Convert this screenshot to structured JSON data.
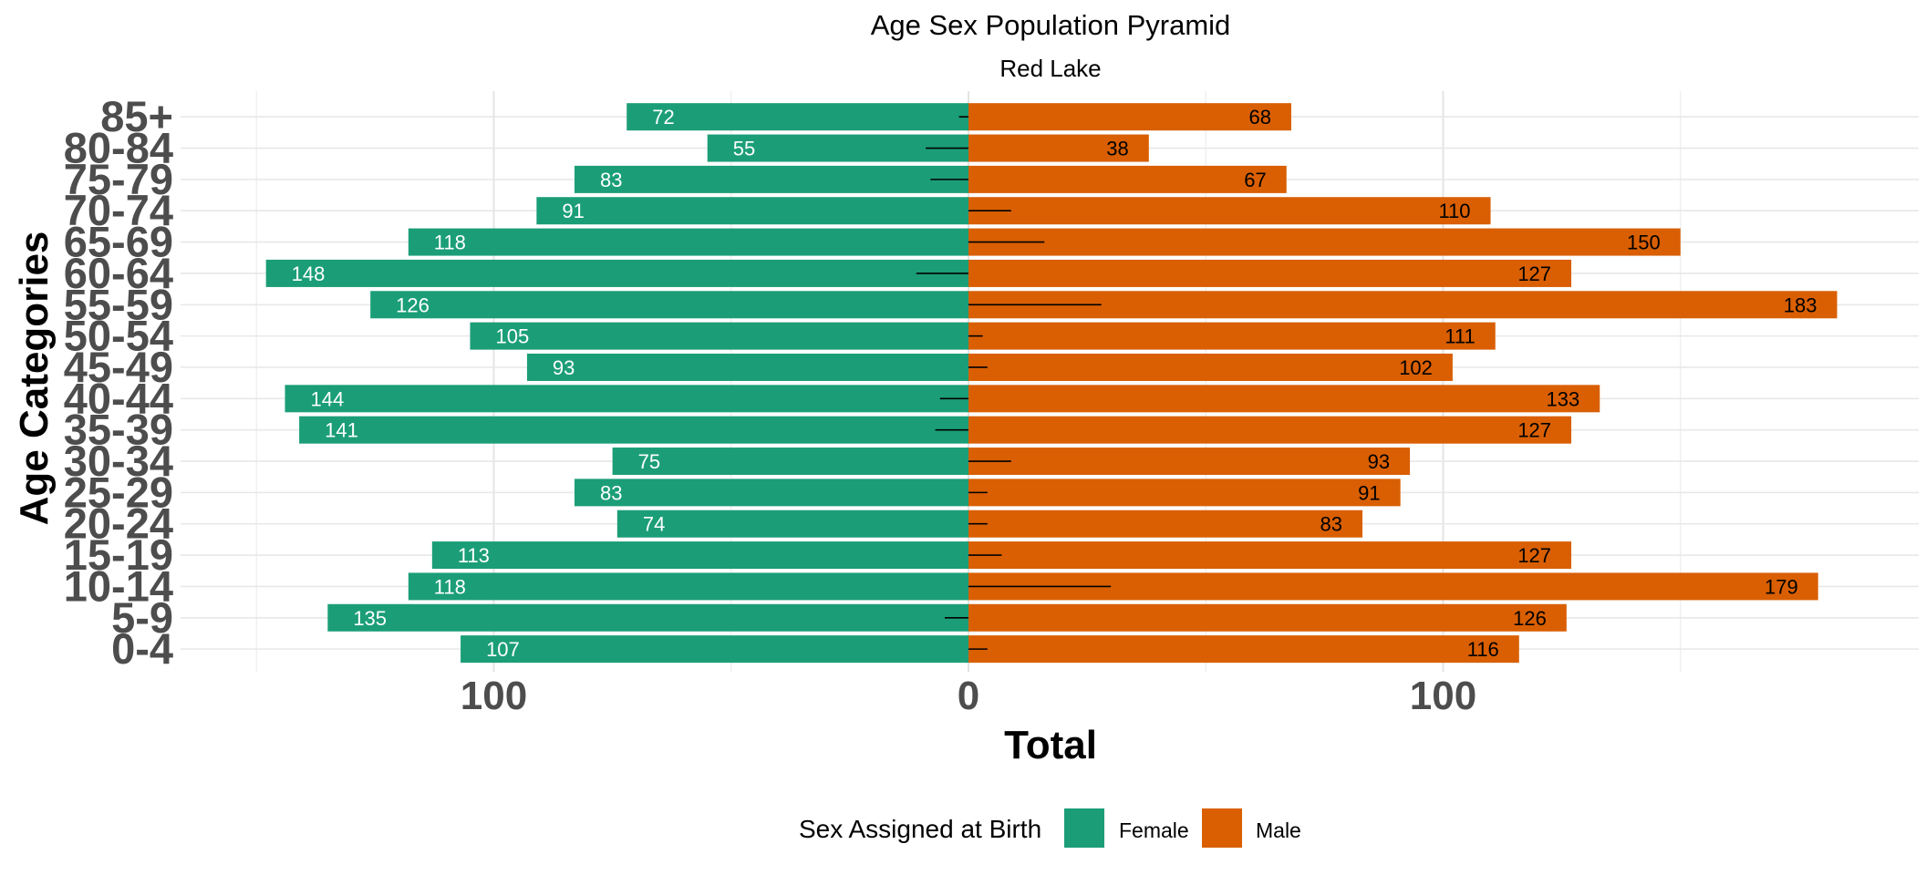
{
  "chart_data": {
    "type": "bar",
    "orientation": "horizontal",
    "title": "Age Sex Population Pyramid",
    "subtitle": "Red Lake",
    "xlabel": "Total",
    "ylabel": "Age Categories",
    "xlim": [
      -150,
      190
    ],
    "x_ticks": [
      -100,
      0,
      100
    ],
    "x_tick_labels": [
      "100",
      "0",
      "100"
    ],
    "grid": true,
    "legend": {
      "position": "bottom",
      "title": "Sex Assigned at Birth",
      "items": [
        "Female",
        "Male"
      ]
    },
    "categories": [
      "0-4",
      "5-9",
      "10-14",
      "15-19",
      "20-24",
      "25-29",
      "30-34",
      "35-39",
      "40-44",
      "45-49",
      "50-54",
      "55-59",
      "60-64",
      "65-69",
      "70-74",
      "75-79",
      "80-84",
      "85+"
    ],
    "series": [
      {
        "name": "Female",
        "color": "#1b9e77",
        "values": [
          107,
          135,
          118,
          113,
          74,
          83,
          75,
          141,
          144,
          93,
          105,
          126,
          148,
          118,
          91,
          83,
          55,
          72
        ],
        "labels": [
          "107",
          "135",
          "118",
          "113",
          "74",
          "83",
          "75",
          "141",
          "144",
          "93",
          "105",
          "126",
          "148",
          "118",
          "91",
          "83",
          "55",
          "72"
        ]
      },
      {
        "name": "Male",
        "color": "#d95f02",
        "values": [
          116,
          126,
          179,
          127,
          83,
          91,
          93,
          127,
          133,
          102,
          111,
          183,
          127,
          150,
          110,
          67,
          38,
          68
        ],
        "labels": [
          "116",
          "126",
          "179",
          "127",
          "83",
          "91",
          "93",
          "127",
          "133",
          "102",
          "111",
          "183",
          "127",
          "150",
          "110",
          "67",
          "38",
          "68"
        ]
      }
    ],
    "difference_lines": [
      4,
      -5,
      30,
      7,
      4,
      4,
      9,
      -7,
      -6,
      4,
      3,
      28,
      -11,
      16,
      9,
      -8,
      -9,
      -2
    ]
  }
}
